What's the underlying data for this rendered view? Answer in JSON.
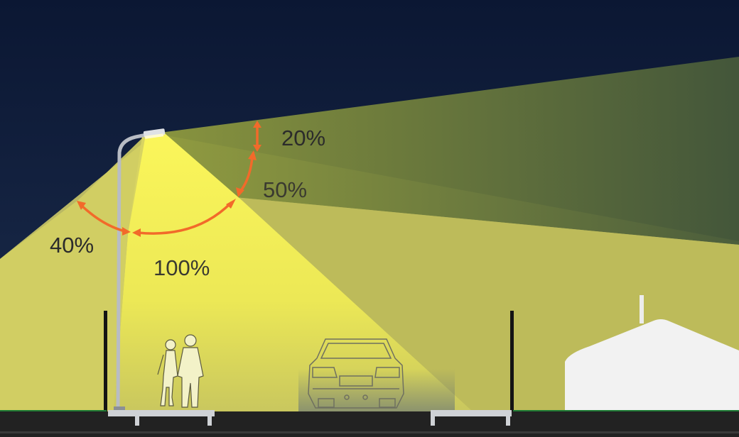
{
  "labels": {
    "upper_light": "20%",
    "forward_upper": "50%",
    "backward": "40%",
    "forward_main": "100%"
  },
  "colors": {
    "sky_top": "#0b1733",
    "sky_bottom": "#1b2b4a",
    "beam_main": "#f4f04a",
    "beam_side": "#d6d168",
    "beam_upper": "#56683a",
    "arrow": "#f26a2a",
    "road": "#222222",
    "grass": "#1f7a35",
    "building": "#f2f2f2"
  },
  "icons": {
    "lamp": "street-lamp-icon",
    "pedestrians": "walking-couple-icon",
    "car": "car-rear-icon",
    "building": "tent-building-icon"
  }
}
